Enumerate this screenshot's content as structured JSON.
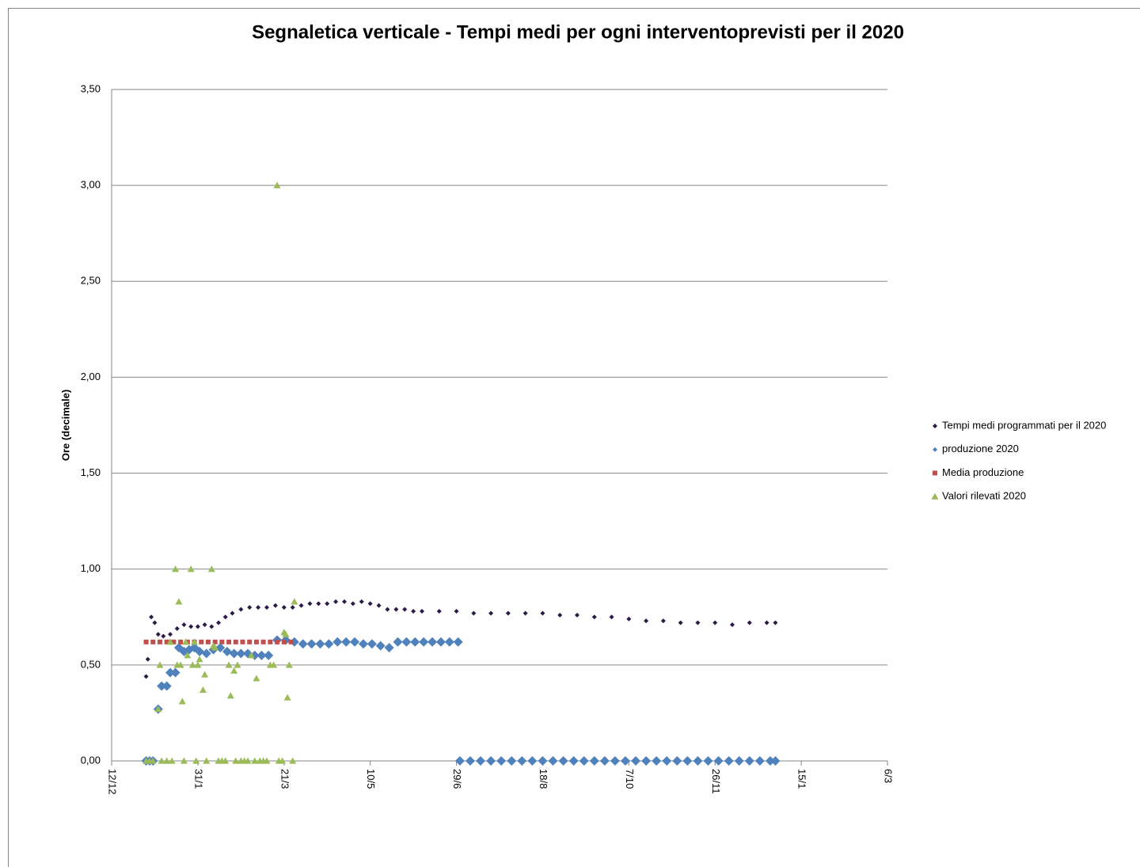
{
  "chart_data": {
    "type": "scatter",
    "title": "Segnaletica verticale - Tempi medi per ogni interventoprevisti per il 2020",
    "y_label": "Ore (decimale)",
    "legend": "right",
    "grid": true,
    "xlim": [
      43811,
      44261
    ],
    "xticks": [
      {
        "value": 43811,
        "label": "12/12"
      },
      {
        "value": 43861,
        "label": "31/1"
      },
      {
        "value": 43911,
        "label": "21/3"
      },
      {
        "value": 43961,
        "label": "10/5"
      },
      {
        "value": 44011,
        "label": "29/6"
      },
      {
        "value": 44061,
        "label": "18/8"
      },
      {
        "value": 44111,
        "label": "7/10"
      },
      {
        "value": 44161,
        "label": "26/11"
      },
      {
        "value": 44211,
        "label": "15/1"
      },
      {
        "value": 44261,
        "label": "6/3"
      }
    ],
    "ylim": [
      0,
      3.5
    ],
    "yticks": [
      {
        "value": 0,
        "label": "0,00"
      },
      {
        "value": 0.5,
        "label": "0,50"
      },
      {
        "value": 1,
        "label": "1,00"
      },
      {
        "value": 1.5,
        "label": "1,50"
      },
      {
        "value": 2,
        "label": "2,00"
      },
      {
        "value": 2.5,
        "label": "2,50"
      },
      {
        "value": 3,
        "label": "3,00"
      },
      {
        "value": 3.5,
        "label": "3,50"
      }
    ],
    "series": [
      {
        "name": "Tempi medi programmati per il 2020",
        "color": "#2e1a47",
        "marker": "diamond-small",
        "x": [
          43831,
          43832,
          43834,
          43836,
          43838,
          43841,
          43845,
          43849,
          43853,
          43857,
          43861,
          43865,
          43869,
          43873,
          43877,
          43881,
          43886,
          43891,
          43896,
          43901,
          43906,
          43911,
          43916,
          43921,
          43926,
          43931,
          43936,
          43941,
          43946,
          43951,
          43956,
          43961,
          43966,
          43971,
          43976,
          43981,
          43986,
          43991,
          44001,
          44011,
          44021,
          44031,
          44041,
          44051,
          44061,
          44071,
          44081,
          44091,
          44101,
          44111,
          44121,
          44131,
          44141,
          44151,
          44161,
          44171,
          44181,
          44191,
          44196
        ],
        "values": [
          0.44,
          0.53,
          0.75,
          0.72,
          0.66,
          0.65,
          0.66,
          0.69,
          0.71,
          0.7,
          0.7,
          0.71,
          0.7,
          0.72,
          0.75,
          0.77,
          0.79,
          0.8,
          0.8,
          0.8,
          0.81,
          0.8,
          0.8,
          0.81,
          0.82,
          0.82,
          0.82,
          0.83,
          0.83,
          0.82,
          0.83,
          0.82,
          0.81,
          0.79,
          0.79,
          0.79,
          0.78,
          0.78,
          0.78,
          0.78,
          0.77,
          0.77,
          0.77,
          0.77,
          0.77,
          0.76,
          0.76,
          0.75,
          0.75,
          0.74,
          0.73,
          0.73,
          0.72,
          0.72,
          0.72,
          0.71,
          0.72,
          0.72,
          0.72
        ]
      },
      {
        "name": "produzione 2020",
        "color": "#4f81bd",
        "marker": "diamond",
        "x": [
          43831,
          43833,
          43835,
          43838,
          43840,
          43843,
          43845,
          43848,
          43850,
          43853,
          43856,
          43859,
          43862,
          43866,
          43870,
          43874,
          43878,
          43882,
          43886,
          43890,
          43894,
          43898,
          43902,
          43907,
          43912,
          43917,
          43922,
          43927,
          43932,
          43937,
          43942,
          43947,
          43952,
          43957,
          43962,
          43967,
          43972,
          43977,
          43982,
          43987,
          43992,
          43997,
          44002,
          44007,
          44012,
          44013,
          44019,
          44025,
          44031,
          44037,
          44043,
          44049,
          44055,
          44061,
          44067,
          44073,
          44079,
          44085,
          44091,
          44097,
          44103,
          44109,
          44115,
          44121,
          44127,
          44133,
          44139,
          44145,
          44151,
          44157,
          44163,
          44169,
          44175,
          44181,
          44187,
          44193,
          44196
        ],
        "values": [
          0,
          0,
          0,
          0.27,
          0.39,
          0.39,
          0.46,
          0.46,
          0.59,
          0.57,
          0.58,
          0.59,
          0.57,
          0.56,
          0.58,
          0.59,
          0.57,
          0.56,
          0.56,
          0.56,
          0.55,
          0.55,
          0.55,
          0.63,
          0.63,
          0.62,
          0.61,
          0.61,
          0.61,
          0.61,
          0.62,
          0.62,
          0.62,
          0.61,
          0.61,
          0.6,
          0.59,
          0.62,
          0.62,
          0.62,
          0.62,
          0.62,
          0.62,
          0.62,
          0.62,
          0,
          0,
          0,
          0,
          0,
          0,
          0,
          0,
          0,
          0,
          0,
          0,
          0,
          0,
          0,
          0,
          0,
          0,
          0,
          0,
          0,
          0,
          0,
          0,
          0,
          0,
          0,
          0,
          0,
          0,
          0,
          0
        ]
      },
      {
        "name": "Media produzione",
        "color": "#c0504d",
        "marker": "square",
        "x": [
          43831,
          43835,
          43839,
          43843,
          43847,
          43851,
          43855,
          43859,
          43863,
          43867,
          43871,
          43875,
          43879,
          43883,
          43887,
          43891,
          43895,
          43899,
          43903,
          43907,
          43911,
          43915
        ],
        "values": [
          0.62,
          0.62,
          0.62,
          0.62,
          0.62,
          0.62,
          0.62,
          0.62,
          0.62,
          0.62,
          0.62,
          0.62,
          0.62,
          0.62,
          0.62,
          0.62,
          0.62,
          0.62,
          0.62,
          0.62,
          0.62,
          0.62
        ]
      },
      {
        "name": "Valori rilevati 2020",
        "color": "#9bbb59",
        "marker": "triangle",
        "x": [
          43831,
          43833,
          43835,
          43838,
          43839,
          43840,
          43843,
          43845,
          43846,
          43848,
          43849,
          43850,
          43851,
          43852,
          43853,
          43854,
          43855,
          43857,
          43858,
          43859,
          43860,
          43861,
          43862,
          43864,
          43865,
          43866,
          43869,
          43870,
          43871,
          43873,
          43875,
          43877,
          43879,
          43880,
          43882,
          43883,
          43884,
          43886,
          43888,
          43890,
          43892,
          43894,
          43895,
          43897,
          43899,
          43901,
          43903,
          43905,
          43907,
          43908,
          43910,
          43911,
          43912,
          43913,
          43914,
          43916,
          43917
        ],
        "values": [
          0,
          0,
          0,
          0.27,
          0.5,
          0,
          0,
          0.62,
          0,
          1.0,
          0.5,
          0.83,
          0.5,
          0.31,
          0,
          0.62,
          0.55,
          1.0,
          0.5,
          0.62,
          0,
          0.5,
          0.53,
          0.37,
          0.45,
          0,
          1.0,
          0.6,
          0.59,
          0,
          0,
          0,
          0.5,
          0.34,
          0.47,
          0,
          0.5,
          0,
          0,
          0,
          0.55,
          0,
          0.43,
          0,
          0,
          0,
          0.5,
          0.5,
          3.0,
          0,
          0,
          0.67,
          0.66,
          0.33,
          0.5,
          0,
          0.83
        ]
      }
    ]
  }
}
